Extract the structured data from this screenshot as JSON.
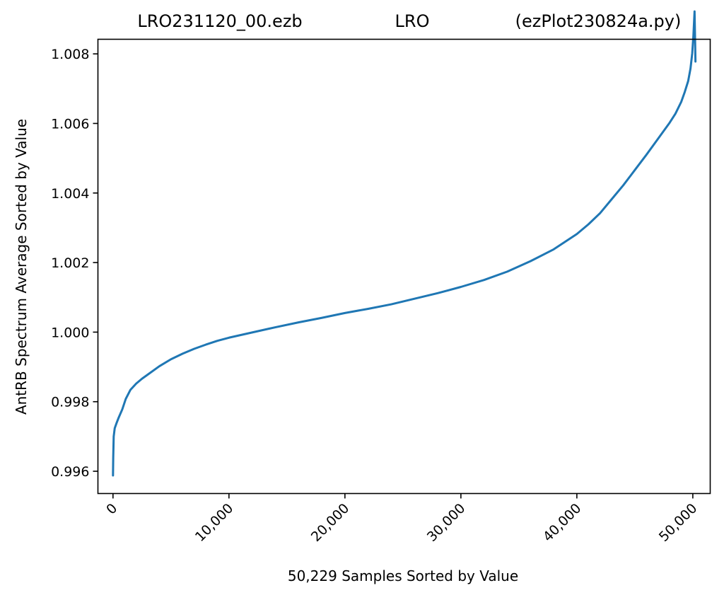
{
  "header": {
    "title_left": "LRO231120_00.ezb",
    "title_center": "LRO",
    "title_right": "(ezPlot230824a.py)"
  },
  "chart_data": {
    "type": "line",
    "xlabel": "50,229 Samples Sorted by Value",
    "ylabel": "AntRB Spectrum Average Sorted by Value",
    "xlim": [
      -1300,
      51500
    ],
    "ylim": [
      0.99536,
      1.00842
    ],
    "xticks": [
      0,
      10000,
      20000,
      30000,
      40000,
      50000
    ],
    "xtick_labels": [
      "0",
      "10,000",
      "20,000",
      "30,000",
      "40,000",
      "50,000"
    ],
    "yticks": [
      0.996,
      0.998,
      1.0,
      1.002,
      1.004,
      1.006,
      1.008
    ],
    "ytick_labels": [
      "0.996",
      "0.998",
      "1.000",
      "1.002",
      "1.004",
      "1.006",
      "1.008"
    ],
    "grid": false,
    "legend": "none",
    "series": [
      {
        "color": "#1f77b4",
        "x": [
          0,
          20,
          60,
          150,
          300,
          500,
          800,
          1100,
          1500,
          2000,
          2500,
          3000,
          4000,
          5000,
          6000,
          7000,
          8000,
          9000,
          10000,
          12000,
          14000,
          16000,
          18000,
          20000,
          22000,
          24000,
          26000,
          28000,
          30000,
          32000,
          34000,
          36000,
          38000,
          40000,
          41000,
          42000,
          43000,
          44000,
          45000,
          46000,
          47000,
          48000,
          48500,
          49000,
          49300,
          49600,
          49800,
          49950,
          50050,
          50150,
          50229
        ],
        "y": [
          0.99588,
          0.9964,
          0.997,
          0.99724,
          0.99738,
          0.99755,
          0.99778,
          0.99808,
          0.99834,
          0.99852,
          0.99866,
          0.99878,
          0.99902,
          0.99922,
          0.99938,
          0.99952,
          0.99964,
          0.99975,
          0.99984,
          0.99999,
          1.00014,
          1.00028,
          1.00041,
          1.00055,
          1.00067,
          1.0008,
          1.00096,
          1.00112,
          1.0013,
          1.0015,
          1.00174,
          1.00204,
          1.00238,
          1.00282,
          1.0031,
          1.00342,
          1.00382,
          1.00422,
          1.00466,
          1.0051,
          1.00556,
          1.00602,
          1.00628,
          1.00662,
          1.0069,
          1.00722,
          1.00758,
          1.00802,
          1.00852,
          1.00922,
          1.00778
        ]
      }
    ]
  }
}
